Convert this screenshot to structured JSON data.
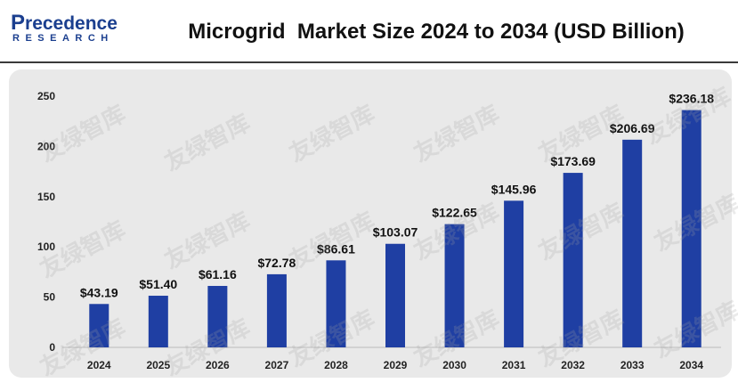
{
  "header": {
    "logo_main": "recedence",
    "logo_cap": "P",
    "logo_sub": "RESEARCH",
    "brand_color": "#1b3f8f"
  },
  "watermark_text": "友绿智库",
  "chart_data": {
    "type": "bar",
    "title": "Microgrid  Market Size 2024 to 2034 (USD Billion)",
    "xlabel": "",
    "ylabel": "",
    "categories": [
      "2024",
      "2025",
      "2026",
      "2027",
      "2028",
      "2029",
      "2030",
      "2031",
      "2032",
      "2033",
      "2034"
    ],
    "values": [
      43.19,
      51.4,
      61.16,
      72.78,
      86.61,
      103.07,
      122.65,
      145.96,
      173.69,
      206.69,
      236.18
    ],
    "data_labels": [
      "$43.19",
      "$51.40",
      "$61.16",
      "$72.78",
      "$86.61",
      "$103.07",
      "$122.65",
      "$145.96",
      "$173.69",
      "$206.69",
      "$236.18"
    ],
    "ylim": [
      0,
      250
    ],
    "yticks": [
      0,
      50,
      100,
      150,
      200,
      250
    ],
    "ytick_labels": [
      "0",
      "50",
      "100",
      "150",
      "200",
      "250"
    ],
    "grid": false,
    "legend": "none",
    "bar_color": "#1f3fa3"
  }
}
